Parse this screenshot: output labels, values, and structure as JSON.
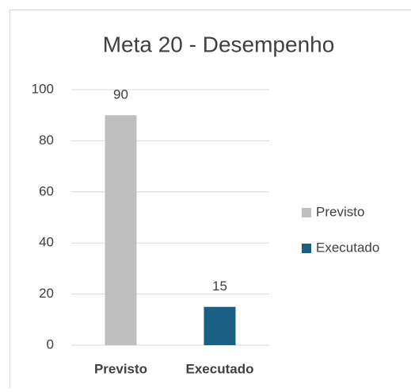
{
  "chart_data": {
    "type": "bar",
    "title": "Meta 20 - Desempenho",
    "categories": [
      "Previsto",
      "Executado"
    ],
    "values": [
      90,
      15
    ],
    "colors": [
      "#bfbfbf",
      "#1a5f84"
    ],
    "ylim": [
      0,
      100
    ],
    "yticks": [
      0,
      20,
      40,
      60,
      80,
      100
    ],
    "grid": true,
    "legend": "right"
  }
}
